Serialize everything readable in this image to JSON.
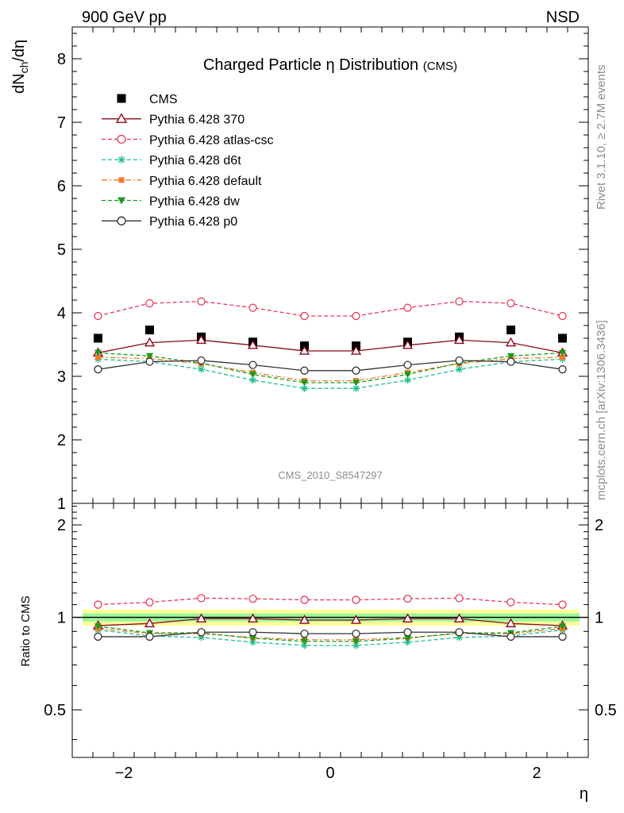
{
  "header": {
    "left": "900 GeV pp",
    "right": "NSD"
  },
  "side_labels": {
    "rivet": "Rivet 3.1.10, ≥ 2.7M events",
    "mcplots": "mcplots.cern.ch [arXiv:1306.3436]"
  },
  "chart_data": [
    {
      "type": "scatter",
      "title": "Charged Particle η Distribution",
      "title_suffix": "(CMS)",
      "ylabel": "dN_ch/dη",
      "xlim": [
        -2.5,
        2.5
      ],
      "ylim": [
        1,
        8.5
      ],
      "yticks": [
        1,
        2,
        3,
        4,
        5,
        6,
        7,
        8
      ],
      "xticks": [
        -2,
        0,
        2
      ],
      "watermark": "CMS_2010_S8547297",
      "x": [
        -2.25,
        -1.75,
        -1.25,
        -0.75,
        -0.25,
        0.25,
        0.75,
        1.25,
        1.75,
        2.25
      ],
      "series": [
        {
          "name": "CMS",
          "color": "#000000",
          "marker": "square",
          "line": "none",
          "values": [
            3.6,
            3.73,
            3.62,
            3.54,
            3.48,
            3.48,
            3.54,
            3.62,
            3.73,
            3.6
          ]
        },
        {
          "name": "Pythia 6.428 370",
          "color": "#8b0a1e",
          "marker": "triangle-open",
          "line": "solid",
          "values": [
            3.37,
            3.53,
            3.57,
            3.49,
            3.4,
            3.4,
            3.49,
            3.57,
            3.53,
            3.37
          ]
        },
        {
          "name": "Pythia 6.428 atlas-csc",
          "color": "#e8395b",
          "marker": "circle-open",
          "line": "dashed",
          "values": [
            3.95,
            4.15,
            4.18,
            4.08,
            3.95,
            3.95,
            4.08,
            4.18,
            4.15,
            3.95
          ]
        },
        {
          "name": "Pythia 6.428 d6t",
          "color": "#1fbf8f",
          "marker": "star",
          "line": "dashed",
          "values": [
            3.27,
            3.23,
            3.11,
            2.94,
            2.81,
            2.81,
            2.94,
            3.11,
            3.23,
            3.27
          ]
        },
        {
          "name": "Pythia 6.428 default",
          "color": "#f07c28",
          "marker": "square",
          "line": "dashdot",
          "values": [
            3.3,
            3.28,
            3.2,
            3.06,
            2.93,
            2.93,
            3.06,
            3.2,
            3.28,
            3.3
          ]
        },
        {
          "name": "Pythia 6.428 dw",
          "color": "#159c1a",
          "marker": "triangle-down",
          "line": "dashed",
          "values": [
            3.37,
            3.32,
            3.21,
            3.03,
            2.9,
            2.9,
            3.03,
            3.21,
            3.32,
            3.37
          ]
        },
        {
          "name": "Pythia 6.428 p0",
          "color": "#333333",
          "marker": "circle-open",
          "line": "solid",
          "values": [
            3.11,
            3.23,
            3.25,
            3.18,
            3.09,
            3.09,
            3.18,
            3.25,
            3.23,
            3.11
          ]
        }
      ]
    },
    {
      "type": "scatter",
      "ylabel": "Ratio to CMS",
      "xlabel": "η",
      "xlim": [
        -2.5,
        2.5
      ],
      "ylim": [
        0.35,
        2.35
      ],
      "yticks": [
        0.5,
        1,
        2
      ],
      "ytick_labels": [
        "0.5",
        "1",
        "2"
      ],
      "xticks": [
        -2,
        0,
        2
      ],
      "xtick_labels": [
        "−2",
        "0",
        "2"
      ],
      "bands": {
        "outer": 0.06,
        "inner": 0.03,
        "outer_color": "#fdfd9b",
        "inner_color": "#9cf59c"
      },
      "x": [
        -2.25,
        -1.75,
        -1.25,
        -0.75,
        -0.25,
        0.25,
        0.75,
        1.25,
        1.75,
        2.25
      ],
      "series": [
        {
          "name": "Pythia 6.428 370",
          "color": "#8b0a1e",
          "marker": "triangle-open",
          "line": "solid",
          "values": [
            0.94,
            0.955,
            0.99,
            0.99,
            0.98,
            0.98,
            0.99,
            0.99,
            0.955,
            0.94
          ]
        },
        {
          "name": "Pythia 6.428 atlas-csc",
          "color": "#e8395b",
          "marker": "circle-open",
          "line": "dashed",
          "values": [
            1.1,
            1.12,
            1.155,
            1.15,
            1.14,
            1.14,
            1.15,
            1.155,
            1.12,
            1.1
          ]
        },
        {
          "name": "Pythia 6.428 d6t",
          "color": "#1fbf8f",
          "marker": "star",
          "line": "dashed",
          "values": [
            0.91,
            0.87,
            0.86,
            0.83,
            0.81,
            0.81,
            0.83,
            0.86,
            0.87,
            0.91
          ]
        },
        {
          "name": "Pythia 6.428 default",
          "color": "#f07c28",
          "marker": "square",
          "line": "dashdot",
          "values": [
            0.92,
            0.885,
            0.885,
            0.86,
            0.845,
            0.845,
            0.86,
            0.885,
            0.885,
            0.92
          ]
        },
        {
          "name": "Pythia 6.428 dw",
          "color": "#159c1a",
          "marker": "triangle-down",
          "line": "dashed",
          "values": [
            0.935,
            0.89,
            0.89,
            0.855,
            0.835,
            0.835,
            0.855,
            0.89,
            0.89,
            0.935
          ]
        },
        {
          "name": "Pythia 6.428 p0",
          "color": "#333333",
          "marker": "circle-open",
          "line": "solid",
          "values": [
            0.865,
            0.865,
            0.895,
            0.895,
            0.885,
            0.885,
            0.895,
            0.895,
            0.865,
            0.865
          ]
        }
      ]
    }
  ]
}
